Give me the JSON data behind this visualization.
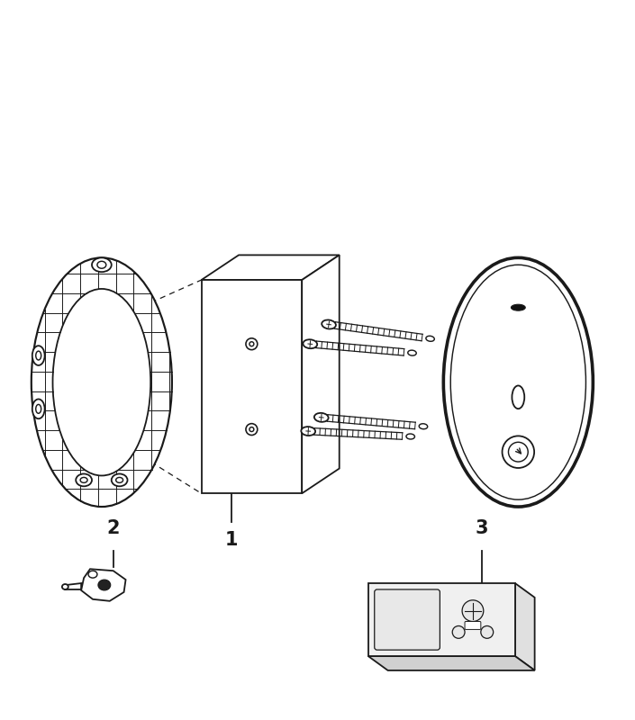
{
  "bg_color": "#ffffff",
  "line_color": "#1a1a1a",
  "fig_width": 7.05,
  "fig_height": 8.0,
  "dpi": 100,
  "label_1": "1",
  "label_2": "2",
  "label_3": "3"
}
